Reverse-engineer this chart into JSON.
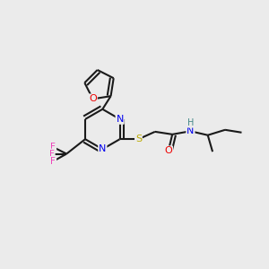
{
  "bg_color": "#ebebeb",
  "atom_colors": {
    "C": "#1a1a1a",
    "N": "#0000ee",
    "O": "#ee0000",
    "S": "#bbaa00",
    "F": "#ee44bb",
    "H": "#448888"
  },
  "bond_color": "#1a1a1a",
  "bond_width": 1.5,
  "title": ""
}
